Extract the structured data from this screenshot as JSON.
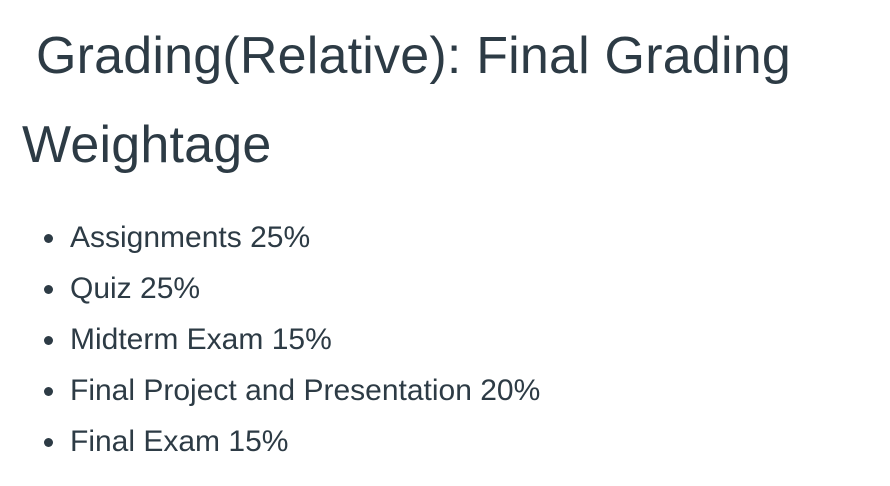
{
  "heading": "Grading(Relative): Final Grading Weightage",
  "weightage": [
    {
      "text": "Assignments 25%"
    },
    {
      "text": "Quiz 25%"
    },
    {
      "text": "Midterm Exam 15%"
    },
    {
      "text": "Final Project and Presentation 20%"
    },
    {
      "text": "Final Exam 15%"
    }
  ],
  "colors": {
    "text": "#2d3b45",
    "background": "#ffffff"
  },
  "icons": {
    "list_bullet": "bullet-icon"
  }
}
